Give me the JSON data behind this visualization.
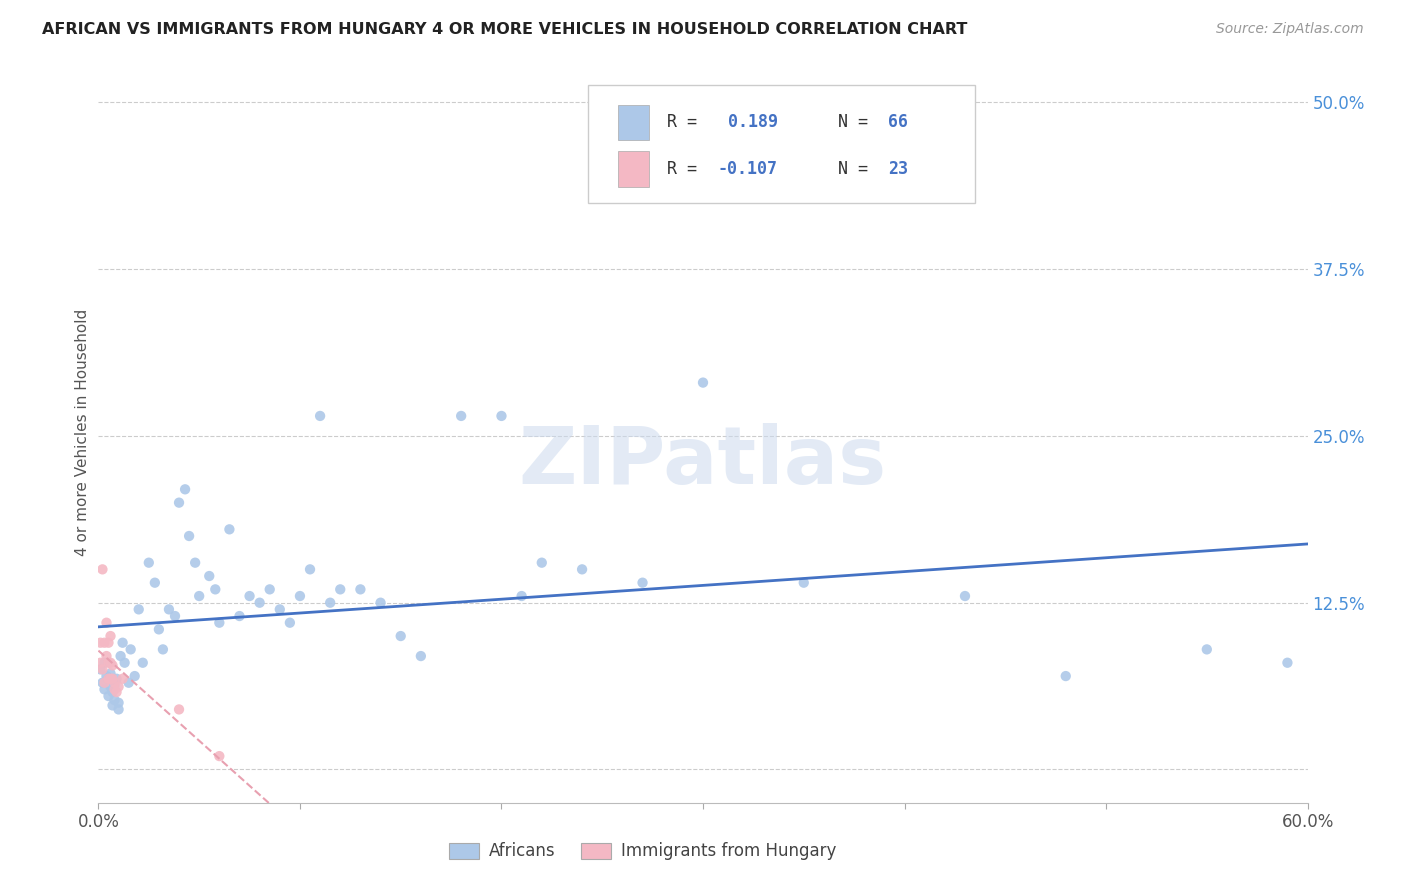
{
  "title": "AFRICAN VS IMMIGRANTS FROM HUNGARY 4 OR MORE VEHICLES IN HOUSEHOLD CORRELATION CHART",
  "source": "Source: ZipAtlas.com",
  "ylabel": "4 or more Vehicles in Household",
  "xlim": [
    0.0,
    0.6
  ],
  "ylim": [
    -0.025,
    0.53
  ],
  "color_blue": "#adc8e8",
  "color_pink": "#f4b8c4",
  "line_blue": "#4472c4",
  "line_pink": "#e8a0b0",
  "watermark_color": "#ccdaee",
  "africans_x": [
    0.001,
    0.002,
    0.003,
    0.003,
    0.004,
    0.005,
    0.005,
    0.006,
    0.006,
    0.007,
    0.007,
    0.008,
    0.008,
    0.009,
    0.01,
    0.01,
    0.011,
    0.012,
    0.013,
    0.015,
    0.016,
    0.018,
    0.02,
    0.022,
    0.025,
    0.028,
    0.03,
    0.032,
    0.035,
    0.038,
    0.04,
    0.043,
    0.045,
    0.048,
    0.05,
    0.055,
    0.058,
    0.06,
    0.065,
    0.07,
    0.075,
    0.08,
    0.085,
    0.09,
    0.095,
    0.1,
    0.105,
    0.11,
    0.115,
    0.12,
    0.13,
    0.14,
    0.15,
    0.16,
    0.18,
    0.2,
    0.21,
    0.22,
    0.24,
    0.27,
    0.3,
    0.35,
    0.43,
    0.48,
    0.55,
    0.59
  ],
  "africans_y": [
    0.075,
    0.065,
    0.06,
    0.08,
    0.07,
    0.055,
    0.068,
    0.062,
    0.072,
    0.058,
    0.048,
    0.052,
    0.063,
    0.068,
    0.05,
    0.045,
    0.085,
    0.095,
    0.08,
    0.065,
    0.09,
    0.07,
    0.12,
    0.08,
    0.155,
    0.14,
    0.105,
    0.09,
    0.12,
    0.115,
    0.2,
    0.21,
    0.175,
    0.155,
    0.13,
    0.145,
    0.135,
    0.11,
    0.18,
    0.115,
    0.13,
    0.125,
    0.135,
    0.12,
    0.11,
    0.13,
    0.15,
    0.265,
    0.125,
    0.135,
    0.135,
    0.125,
    0.1,
    0.085,
    0.265,
    0.265,
    0.13,
    0.155,
    0.15,
    0.14,
    0.29,
    0.14,
    0.13,
    0.07,
    0.09,
    0.08
  ],
  "hungary_x": [
    0.001,
    0.001,
    0.002,
    0.002,
    0.003,
    0.003,
    0.004,
    0.004,
    0.005,
    0.005,
    0.005,
    0.006,
    0.006,
    0.006,
    0.007,
    0.007,
    0.008,
    0.008,
    0.009,
    0.01,
    0.012,
    0.04,
    0.06
  ],
  "hungary_y": [
    0.08,
    0.095,
    0.075,
    0.15,
    0.065,
    0.095,
    0.085,
    0.11,
    0.08,
    0.068,
    0.095,
    0.068,
    0.08,
    0.1,
    0.068,
    0.078,
    0.06,
    0.065,
    0.058,
    0.062,
    0.068,
    0.045,
    0.01
  ]
}
